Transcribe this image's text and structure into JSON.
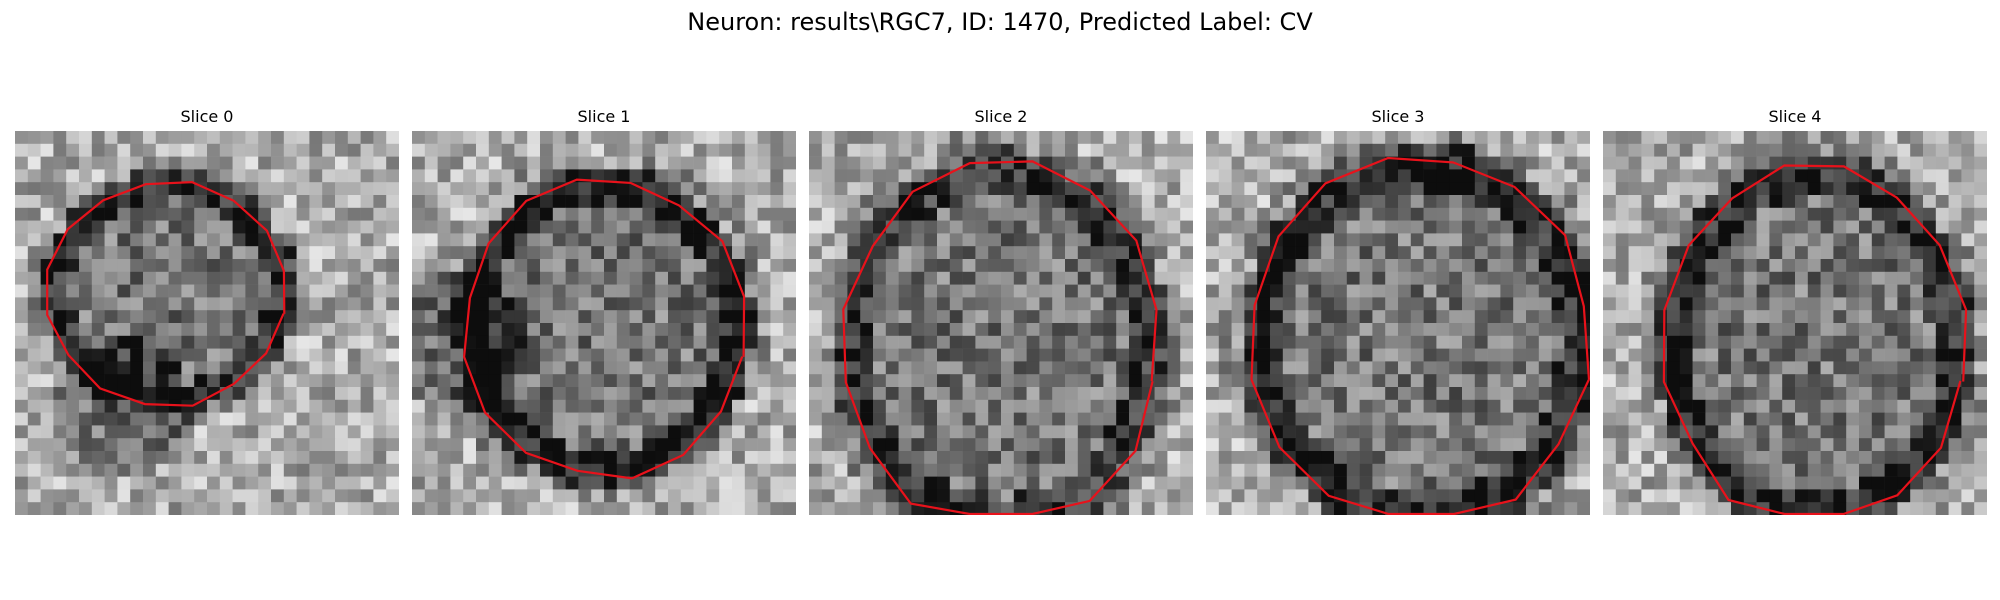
{
  "figure": {
    "title": "Neuron: results\\RGC7, ID: 1470, Predicted Label: CV",
    "contour_color": "#e8121b",
    "colormap": "gray"
  },
  "panels": [
    {
      "title": "Slice 0"
    },
    {
      "title": "Slice 1"
    },
    {
      "title": "Slice 2"
    },
    {
      "title": "Slice 3"
    },
    {
      "title": "Slice 4"
    }
  ]
}
